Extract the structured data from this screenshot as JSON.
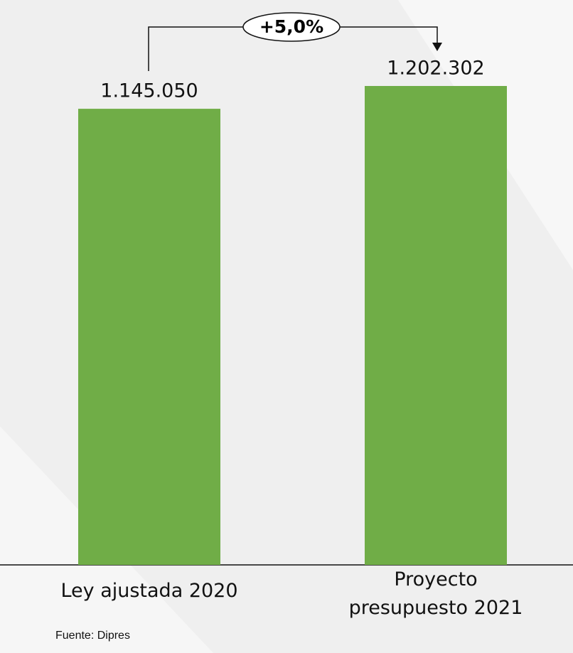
{
  "chart_data": {
    "type": "bar",
    "categories": [
      "Ley ajustada 2020",
      "Proyecto presupuesto 2021"
    ],
    "values": [
      1145050,
      1202302
    ],
    "value_labels": [
      "1.145.050",
      "1.202.302"
    ],
    "color": "#70ad47",
    "annotation": "+5,0%",
    "source": "Fuente: Dipres"
  }
}
